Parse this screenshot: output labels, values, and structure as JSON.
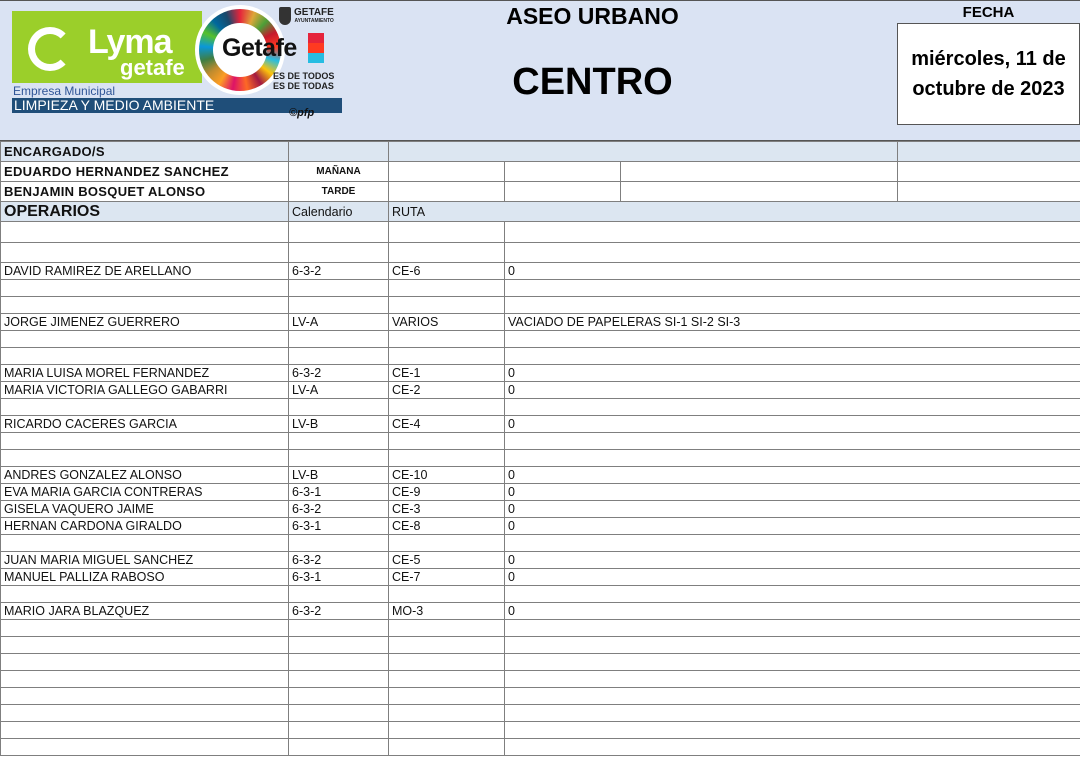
{
  "logo": {
    "brand": "Lyma",
    "brand_sub": "getafe",
    "getafe": "Getafe",
    "ayuntamiento": "GETAFE",
    "ayuntamiento_sub": "AYUNTAMIENTO",
    "slogan1": "ES DE TODOS",
    "slogan2": "ES DE TODAS",
    "empresa": "Empresa Municipal",
    "servicio": "LIMPIEZA Y MEDIO AMBIENTE",
    "credit": "©pfp"
  },
  "header": {
    "title": "ASEO URBANO",
    "zone": "CENTRO",
    "date_label": "FECHA",
    "date": "miércoles, 11 de octubre de 2023"
  },
  "encargados": {
    "label": "ENCARGADO/S",
    "rows": [
      {
        "name": "EDUARDO HERNANDEZ SANCHEZ",
        "turno": "MAÑANA"
      },
      {
        "name": "BENJAMIN BOSQUET ALONSO",
        "turno": "TARDE"
      }
    ]
  },
  "operarios": {
    "label": "OPERARIOS",
    "col_calendario": "Calendario",
    "col_ruta": "RUTA",
    "rows": [
      {
        "name": "",
        "cal": "",
        "ruta": "",
        "desc": ""
      },
      {
        "name": "",
        "cal": "",
        "ruta": "",
        "desc": ""
      },
      {
        "name": "DAVID RAMIREZ DE ARELLANO",
        "cal": "6-3-2",
        "ruta": "CE-6",
        "desc": "0"
      },
      {
        "name": "",
        "cal": "",
        "ruta": "",
        "desc": ""
      },
      {
        "name": "",
        "cal": "",
        "ruta": "",
        "desc": ""
      },
      {
        "name": "JORGE JIMENEZ GUERRERO",
        "cal": "LV-A",
        "ruta": "VARIOS",
        "desc": "VACIADO DE PAPELERAS SI-1 SI-2 SI-3"
      },
      {
        "name": "",
        "cal": "",
        "ruta": "",
        "desc": ""
      },
      {
        "name": "",
        "cal": "",
        "ruta": "",
        "desc": ""
      },
      {
        "name": "MARIA LUISA MOREL FERNANDEZ",
        "cal": "6-3-2",
        "ruta": "CE-1",
        "desc": "0"
      },
      {
        "name": "MARIA VICTORIA GALLEGO GABARRI",
        "cal": "LV-A",
        "ruta": "CE-2",
        "desc": "0"
      },
      {
        "name": "",
        "cal": "",
        "ruta": "",
        "desc": ""
      },
      {
        "name": "RICARDO CACERES GARCIA",
        "cal": "LV-B",
        "ruta": "CE-4",
        "desc": "0"
      },
      {
        "name": "",
        "cal": "",
        "ruta": "",
        "desc": ""
      },
      {
        "name": "",
        "cal": "",
        "ruta": "",
        "desc": ""
      },
      {
        "name": "ANDRES GONZALEZ ALONSO",
        "cal": "LV-B",
        "ruta": "CE-10",
        "desc": "0"
      },
      {
        "name": "EVA MARIA GARCIA CONTRERAS",
        "cal": "6-3-1",
        "ruta": "CE-9",
        "desc": "0"
      },
      {
        "name": "GISELA VAQUERO JAIME",
        "cal": "6-3-2",
        "ruta": "CE-3",
        "desc": "0"
      },
      {
        "name": "HERNAN CARDONA GIRALDO",
        "cal": "6-3-1",
        "ruta": "CE-8",
        "desc": "0"
      },
      {
        "name": "",
        "cal": "",
        "ruta": "",
        "desc": ""
      },
      {
        "name": "JUAN MARIA MIGUEL SANCHEZ",
        "cal": "6-3-2",
        "ruta": "CE-5",
        "desc": "0"
      },
      {
        "name": "MANUEL PALLIZA RABOSO",
        "cal": "6-3-1",
        "ruta": "CE-7",
        "desc": "0"
      },
      {
        "name": "",
        "cal": "",
        "ruta": "",
        "desc": ""
      },
      {
        "name": "MARIO JARA BLAZQUEZ",
        "cal": "6-3-2",
        "ruta": "MO-3",
        "desc": "0"
      },
      {
        "name": "",
        "cal": "",
        "ruta": "",
        "desc": ""
      },
      {
        "name": "",
        "cal": "",
        "ruta": "",
        "desc": ""
      },
      {
        "name": "",
        "cal": "",
        "ruta": "",
        "desc": ""
      },
      {
        "name": "",
        "cal": "",
        "ruta": "",
        "desc": ""
      },
      {
        "name": "",
        "cal": "",
        "ruta": "",
        "desc": ""
      },
      {
        "name": "",
        "cal": "",
        "ruta": "",
        "desc": ""
      },
      {
        "name": "",
        "cal": "",
        "ruta": "",
        "desc": ""
      },
      {
        "name": "",
        "cal": "",
        "ruta": "",
        "desc": ""
      }
    ]
  }
}
